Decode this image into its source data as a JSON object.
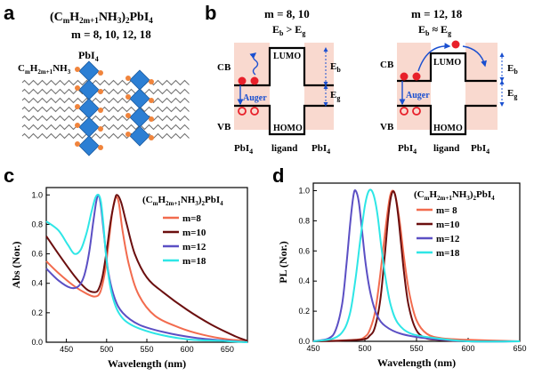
{
  "panels": {
    "a": {
      "letter": "a",
      "formula_main": "(C",
      "formula_sub1": "m",
      "formula_mid": "H",
      "formula_sub2": "2m+1",
      "formula_tail": "NH",
      "formula_sub3": "3",
      "formula_close": ")",
      "formula_sub4": "2",
      "formula_end": "PbI",
      "formula_sub5": "4",
      "m_values": "m = 8, 10, 12, 18",
      "pbi4_label": "PbI",
      "pbi4_sub": "4",
      "chain_label": "C",
      "chain_sub1": "m",
      "chain_mid": "H",
      "chain_sub2": "2m+1",
      "chain_tail": "NH",
      "chain_sub3": "3"
    },
    "b": {
      "letter": "b",
      "left": {
        "title": "m = 8, 10",
        "relation": "E",
        "relation_sub1": "b",
        "relation_op": " > E",
        "relation_sub2": "g",
        "lumo": "LUMO",
        "homo": "HOMO",
        "cb": "CB",
        "vb": "VB",
        "auger": "Auger",
        "eb": "E",
        "eb_sub": "b",
        "eg": "E",
        "eg_sub": "g",
        "pbi4_left": "PbI",
        "pbi4_right": "PbI",
        "pbi4_sub": "4",
        "ligand": "ligand"
      },
      "right": {
        "title": "m = 12, 18",
        "relation": "E",
        "relation_sub1": "b",
        "relation_op": " ≈ E",
        "relation_sub2": "g",
        "lumo": "LUMO",
        "homo": "HOMO",
        "cb": "CB",
        "vb": "VB",
        "auger": "Auger",
        "eb": "E",
        "eb_sub": "b",
        "eg": "E",
        "eg_sub": "g",
        "pbi4_left": "PbI",
        "pbi4_right": "PbI",
        "pbi4_sub": "4",
        "ligand": "ligand"
      }
    },
    "c": {
      "letter": "c",
      "legend_title": "(C",
      "legend_title_sub1": "m",
      "legend_title_mid": "H",
      "legend_title_sub2": "2m+1",
      "legend_title_tail": "NH",
      "legend_title_sub3": "3",
      "legend_title_close": ")",
      "legend_title_sub4": "2",
      "legend_title_end": "PbI",
      "legend_title_sub5": "4"
    },
    "d": {
      "letter": "d",
      "legend_title": "(C",
      "legend_title_sub1": "m",
      "legend_title_mid": "H",
      "legend_title_sub2": "2m+1",
      "legend_title_tail": "NH",
      "legend_title_sub3": "3",
      "legend_title_close": ")",
      "legend_title_sub4": "2",
      "legend_title_end": "PbI",
      "legend_title_sub5": "4"
    }
  },
  "colors": {
    "m8": "#f26b4e",
    "m10": "#6b0f0f",
    "m12": "#5b4fc4",
    "m18": "#2ee6e6",
    "octahedron": "#2c7fd4",
    "ammonium": "#f0843c",
    "shade": "#f9d9cf",
    "electron": "#e8202a",
    "arrow": "#1a4fd0"
  },
  "chart_data": [
    {
      "type": "line",
      "panel": "c",
      "xlabel": "Wavelength (nm)",
      "ylabel": "Abs (Nor.)",
      "xlim": [
        425,
        675
      ],
      "ylim": [
        0.0,
        1.05
      ],
      "xticks": [
        450,
        500,
        550,
        600,
        650
      ],
      "yticks": [
        0.0,
        0.2,
        0.4,
        0.6,
        0.8,
        1.0
      ],
      "ytick_labels": [
        "0.0",
        "0.2",
        "0.4",
        "0.6",
        "0.8",
        "1.0"
      ],
      "series": [
        {
          "name": "m=8",
          "color_key": "m8",
          "x": [
            425,
            440,
            460,
            475,
            485,
            492,
            498,
            503,
            507,
            511,
            515,
            520,
            528,
            540,
            560,
            590,
            620,
            650,
            675
          ],
          "y": [
            0.55,
            0.47,
            0.38,
            0.33,
            0.31,
            0.34,
            0.48,
            0.7,
            0.88,
            0.98,
            0.95,
            0.75,
            0.52,
            0.32,
            0.18,
            0.1,
            0.05,
            0.02,
            0.01
          ]
        },
        {
          "name": "m=10",
          "color_key": "m10",
          "x": [
            425,
            440,
            460,
            475,
            485,
            490,
            495,
            500,
            505,
            510,
            513,
            518,
            525,
            535,
            550,
            570,
            600,
            630,
            660,
            675
          ],
          "y": [
            0.72,
            0.6,
            0.45,
            0.36,
            0.34,
            0.36,
            0.45,
            0.62,
            0.82,
            0.96,
            1.0,
            0.95,
            0.8,
            0.6,
            0.44,
            0.34,
            0.22,
            0.12,
            0.04,
            0.01
          ]
        },
        {
          "name": "m=12",
          "color_key": "m12",
          "x": [
            425,
            440,
            455,
            465,
            472,
            478,
            483,
            487,
            490,
            493,
            497,
            502,
            510,
            520,
            540,
            570,
            610,
            650,
            675
          ],
          "y": [
            0.5,
            0.42,
            0.37,
            0.38,
            0.45,
            0.6,
            0.8,
            0.95,
            1.0,
            0.92,
            0.72,
            0.48,
            0.3,
            0.2,
            0.12,
            0.07,
            0.03,
            0.01,
            0.0
          ]
        },
        {
          "name": "m=18",
          "color_key": "m18",
          "x": [
            425,
            440,
            452,
            460,
            468,
            475,
            481,
            486,
            490,
            493,
            496,
            500,
            506,
            515,
            530,
            560,
            600,
            640,
            675
          ],
          "y": [
            0.82,
            0.76,
            0.66,
            0.6,
            0.63,
            0.74,
            0.88,
            0.98,
            1.0,
            0.95,
            0.8,
            0.55,
            0.34,
            0.2,
            0.12,
            0.06,
            0.02,
            0.01,
            0.0
          ]
        }
      ],
      "legend": [
        "m=8",
        "m=10",
        "m=12",
        "m=18"
      ]
    },
    {
      "type": "line",
      "panel": "d",
      "xlabel": "Wavelength (nm)",
      "ylabel": "PL (Nor.)",
      "xlim": [
        450,
        650
      ],
      "ylim": [
        0.0,
        1.05
      ],
      "xticks": [
        450,
        500,
        550,
        600,
        650
      ],
      "yticks": [
        0.0,
        0.2,
        0.4,
        0.6,
        0.8,
        1.0
      ],
      "ytick_labels": [
        "0.0",
        "0.2",
        "0.4",
        "0.6",
        "0.8",
        "1.0"
      ],
      "series": [
        {
          "name": "m= 8",
          "color_key": "m8",
          "x": [
            450,
            490,
            500,
            505,
            510,
            515,
            520,
            524,
            527,
            530,
            534,
            538,
            543,
            550,
            560,
            575,
            600,
            650
          ],
          "y": [
            0.0,
            0.01,
            0.03,
            0.08,
            0.2,
            0.45,
            0.75,
            0.95,
            1.0,
            0.95,
            0.78,
            0.55,
            0.32,
            0.14,
            0.05,
            0.02,
            0.01,
            0.0
          ]
        },
        {
          "name": "m=10",
          "color_key": "m10",
          "x": [
            450,
            495,
            505,
            510,
            515,
            519,
            523,
            526,
            529,
            532,
            535,
            538,
            542,
            548,
            556,
            570,
            600,
            650
          ],
          "y": [
            0.0,
            0.01,
            0.04,
            0.1,
            0.28,
            0.55,
            0.85,
            0.98,
            0.98,
            0.85,
            0.65,
            0.45,
            0.25,
            0.1,
            0.03,
            0.01,
            0.0,
            0.0
          ]
        },
        {
          "name": "m=12",
          "color_key": "m12",
          "x": [
            450,
            465,
            472,
            478,
            482,
            486,
            489,
            491,
            494,
            497,
            501,
            506,
            512,
            520,
            535,
            560,
            600,
            650
          ],
          "y": [
            0.0,
            0.02,
            0.08,
            0.25,
            0.5,
            0.8,
            0.97,
            1.0,
            0.93,
            0.75,
            0.5,
            0.3,
            0.17,
            0.1,
            0.05,
            0.02,
            0.0,
            0.0
          ]
        },
        {
          "name": "m=18",
          "color_key": "m18",
          "x": [
            450,
            470,
            480,
            486,
            491,
            496,
            500,
            504,
            508,
            512,
            516,
            520,
            525,
            532,
            545,
            570,
            600,
            650
          ],
          "y": [
            0.0,
            0.02,
            0.08,
            0.2,
            0.42,
            0.7,
            0.9,
            1.0,
            0.98,
            0.85,
            0.62,
            0.42,
            0.24,
            0.12,
            0.05,
            0.02,
            0.0,
            0.0
          ]
        }
      ],
      "legend": [
        "m= 8",
        "m=10",
        "m=12",
        "m=18"
      ]
    }
  ]
}
